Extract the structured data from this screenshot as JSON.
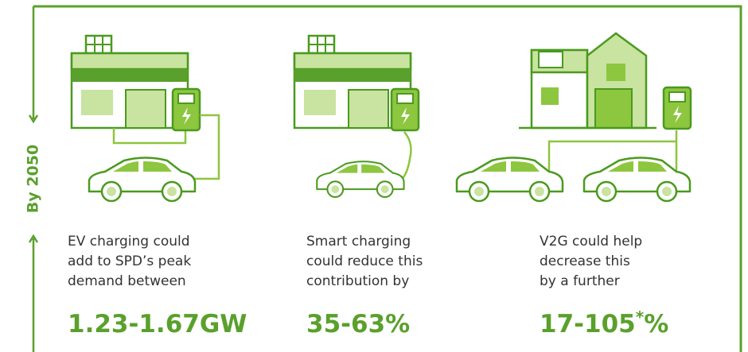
{
  "side_label": "By 2050",
  "panels": [
    {
      "lines": [
        "EV charging could",
        "add to SPD’s peak",
        "demand between"
      ],
      "figure": [
        "1.23-1.67GW"
      ]
    },
    {
      "lines": [
        "Smart charging",
        "could reduce this",
        "contribution by"
      ],
      "figure": [
        "35-63%"
      ]
    },
    {
      "lines": [
        "V2G could help",
        "decrease this",
        "by a further"
      ],
      "figure": [
        "17-105",
        "*",
        "%"
      ]
    }
  ]
}
